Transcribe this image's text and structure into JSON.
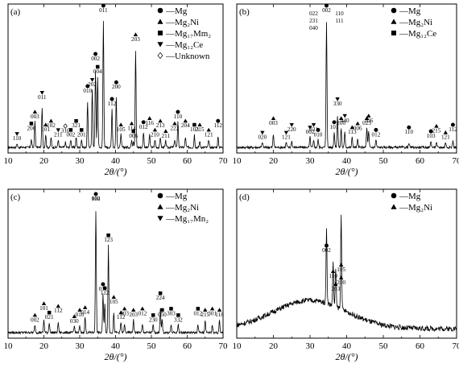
{
  "chart_data": [
    {
      "type": "line",
      "panel": "(a)",
      "xlabel": "2θ/(°)",
      "x_ticks": [
        10,
        20,
        30,
        40,
        50,
        60,
        70
      ],
      "xlim": [
        10,
        70
      ],
      "ylabel": "",
      "grid": false,
      "legend_position": "top-right",
      "legend": [
        {
          "marker": "circle",
          "label": "—Mg"
        },
        {
          "marker": "triangle-up",
          "label": "—Mg₂Ni"
        },
        {
          "marker": "square",
          "label": "—Mg₁₇Mm₂"
        },
        {
          "marker": "triangle-down",
          "label": "—Mg₁₂Ce"
        },
        {
          "marker": "diamond-open",
          "label": "—Unknown"
        }
      ],
      "peaks": [
        {
          "x": 12.5,
          "h": 0.03,
          "marker": "triangle-down",
          "label": "110"
        },
        {
          "x": 16.5,
          "h": 0.06,
          "marker": "square",
          "label": "200"
        },
        {
          "x": 17.5,
          "h": 0.2,
          "marker": "triangle-up",
          "label": "003"
        },
        {
          "x": 19.5,
          "h": 0.3,
          "marker": "triangle-down",
          "label": "011"
        },
        {
          "x": 20.5,
          "h": 0.1,
          "marker": "triangle-up",
          "label": "101"
        },
        {
          "x": 22.0,
          "h": 0.08,
          "marker": "triangle-up",
          "label": "102"
        },
        {
          "x": 24.0,
          "h": 0.06,
          "marker": "triangle-down",
          "label": "211"
        },
        {
          "x": 26.0,
          "h": 0.04,
          "marker": "diamond-open",
          "label": "310"
        },
        {
          "x": 27.5,
          "h": 0.06,
          "marker": "square",
          "label": "002"
        },
        {
          "x": 29.0,
          "h": 0.08,
          "marker": "square",
          "label": "321"
        },
        {
          "x": 30.5,
          "h": 0.06,
          "marker": "square",
          "label": "201"
        },
        {
          "x": 32.2,
          "h": 0.35,
          "marker": "circle",
          "label": "010"
        },
        {
          "x": 33.5,
          "h": 0.45,
          "marker": "triangle-down",
          "label": "202"
        },
        {
          "x": 34.4,
          "h": 0.6,
          "marker": "circle",
          "label": "002"
        },
        {
          "x": 35.0,
          "h": 0.55,
          "marker": "square",
          "label": "004"
        },
        {
          "x": 36.6,
          "h": 0.98,
          "marker": "circle",
          "label": "011"
        },
        {
          "x": 39.0,
          "h": 0.3,
          "marker": "circle",
          "label": "112"
        },
        {
          "x": 40.2,
          "h": 0.38,
          "marker": "circle",
          "label": "200"
        },
        {
          "x": 41.5,
          "h": 0.1,
          "marker": "triangle-up",
          "label": "105"
        },
        {
          "x": 44.5,
          "h": 0.06,
          "marker": "triangle-up",
          "label": "114"
        },
        {
          "x": 45.0,
          "h": 0.05,
          "marker": "square",
          "label": "006"
        },
        {
          "x": 45.6,
          "h": 0.75,
          "marker": "triangle-up",
          "label": "203"
        },
        {
          "x": 47.8,
          "h": 0.12,
          "marker": "circle",
          "label": "012"
        },
        {
          "x": 49.5,
          "h": 0.1,
          "marker": "triangle-up",
          "label": "116"
        },
        {
          "x": 51.0,
          "h": 0.06,
          "marker": "triangle-up",
          "label": "210"
        },
        {
          "x": 52.5,
          "h": 0.08,
          "marker": "triangle-up",
          "label": "213"
        },
        {
          "x": 54.0,
          "h": 0.05,
          "marker": "triangle-up",
          "label": "211"
        },
        {
          "x": 56.5,
          "h": 0.06,
          "marker": "triangle-up",
          "label": "222"
        },
        {
          "x": 57.4,
          "h": 0.2,
          "marker": "circle",
          "label": "110"
        },
        {
          "x": 59.5,
          "h": 0.08,
          "marker": "triangle-up",
          "label": "204"
        },
        {
          "x": 62.0,
          "h": 0.1,
          "marker": "square",
          "label": "103"
        },
        {
          "x": 63.5,
          "h": 0.05,
          "marker": "triangle-up",
          "label": "215"
        },
        {
          "x": 66.0,
          "h": 0.06,
          "marker": "triangle-up",
          "label": "121"
        },
        {
          "x": 68.6,
          "h": 0.08,
          "marker": "circle",
          "label": "112"
        }
      ]
    },
    {
      "type": "line",
      "panel": "(b)",
      "xlabel": "2θ/(°)",
      "x_ticks": [
        10,
        20,
        30,
        40,
        50,
        60,
        70
      ],
      "xlim": [
        10,
        70
      ],
      "ylabel": "",
      "grid": false,
      "legend_position": "top-right",
      "legend": [
        {
          "marker": "circle",
          "label": "—Mg"
        },
        {
          "marker": "triangle-up",
          "label": "—Mg₂Ni"
        },
        {
          "marker": "square",
          "label": "—Mg₁₂Ce"
        }
      ],
      "peaks": [
        {
          "x": 17.0,
          "h": 0.04,
          "marker": "triangle-down",
          "label": "020"
        },
        {
          "x": 20.0,
          "h": 0.1,
          "marker": "triangle-up",
          "label": "003"
        },
        {
          "x": 23.5,
          "h": 0.04,
          "marker": "triangle-down",
          "label": "121"
        },
        {
          "x": 25.0,
          "h": 0.05,
          "marker": "triangle-down",
          "label": "220"
        },
        {
          "x": 30.0,
          "h": 0.08,
          "marker": "triangle-down",
          "label": "002"
        },
        {
          "x": 31.0,
          "h": 0.05,
          "marker": "triangle-down",
          "label": "031"
        },
        {
          "x": 32.2,
          "h": 0.06,
          "marker": "circle",
          "label": "010"
        },
        {
          "x": 34.5,
          "h": 0.98,
          "marker": "circle",
          "label": "002"
        },
        {
          "x": 36.6,
          "h": 0.12,
          "marker": "circle",
          "label": "101"
        },
        {
          "x": 37.5,
          "h": 0.25,
          "marker": "triangle-down",
          "label": "330"
        },
        {
          "x": 38.5,
          "h": 0.15,
          "marker": "triangle-up",
          "label": "200"
        },
        {
          "x": 39.5,
          "h": 0.12,
          "marker": "triangle-down",
          "label": "440"
        },
        {
          "x": 41.5,
          "h": 0.08,
          "marker": "triangle-up",
          "label": "113"
        },
        {
          "x": 43.0,
          "h": 0.06,
          "marker": "triangle-up",
          "label": "006"
        },
        {
          "x": 45.5,
          "h": 0.15,
          "marker": "triangle-up",
          "label": "023"
        },
        {
          "x": 46.0,
          "h": 0.12,
          "marker": "triangle-up",
          "label": "106"
        },
        {
          "x": 48.0,
          "h": 0.06,
          "marker": "circle",
          "label": "012"
        },
        {
          "x": 57.0,
          "h": 0.03,
          "marker": "circle",
          "label": "110"
        },
        {
          "x": 63.0,
          "h": 0.05,
          "marker": "circle",
          "label": "103"
        },
        {
          "x": 64.5,
          "h": 0.04,
          "marker": "triangle-up",
          "label": "215"
        },
        {
          "x": 67.0,
          "h": 0.04,
          "marker": "triangle-up",
          "label": "121"
        },
        {
          "x": 69.0,
          "h": 0.05,
          "marker": "circle",
          "label": "112"
        }
      ],
      "extra_labels": [
        "022",
        "231",
        "040",
        "110",
        "111"
      ]
    },
    {
      "type": "line",
      "panel": "(c)",
      "xlabel": "2θ/(°)",
      "x_ticks": [
        10,
        20,
        30,
        40,
        50,
        60,
        70
      ],
      "xlim": [
        10,
        70
      ],
      "ylabel": "",
      "grid": false,
      "legend_position": "top-right",
      "legend": [
        {
          "marker": "circle",
          "label": "—Mg"
        },
        {
          "marker": "triangle-up",
          "label": "—Mg₂Ni"
        },
        {
          "marker": "triangle-down",
          "label": "—Mg₁₇Mn₂"
        }
      ],
      "peaks": [
        {
          "x": 17.5,
          "h": 0.06,
          "marker": "triangle-up",
          "label": "002"
        },
        {
          "x": 20.0,
          "h": 0.1,
          "marker": "triangle-up",
          "label": "101"
        },
        {
          "x": 21.5,
          "h": 0.08,
          "marker": "square",
          "label": "021"
        },
        {
          "x": 24.0,
          "h": 0.08,
          "marker": "triangle-up",
          "label": "112"
        },
        {
          "x": 28.5,
          "h": 0.05,
          "marker": "triangle-up",
          "label": "030"
        },
        {
          "x": 30.0,
          "h": 0.05,
          "marker": "triangle-up",
          "label": "010"
        },
        {
          "x": 31.5,
          "h": 0.12,
          "marker": "triangle-up",
          "label": "014"
        },
        {
          "x": 34.5,
          "h": 0.95,
          "marker": "circle",
          "label": "002"
        },
        {
          "x": 36.5,
          "h": 0.3,
          "marker": "circle",
          "label": "011"
        },
        {
          "x": 37.0,
          "h": 0.22,
          "marker": "circle",
          "label": "112"
        },
        {
          "x": 38.0,
          "h": 0.68,
          "marker": "square",
          "label": "123"
        },
        {
          "x": 39.5,
          "h": 0.15,
          "marker": "triangle-up",
          "label": "105"
        },
        {
          "x": 41.5,
          "h": 0.08,
          "marker": "triangle-up",
          "label": "112"
        },
        {
          "x": 42.5,
          "h": 0.06,
          "marker": "triangle-up",
          "label": "003"
        },
        {
          "x": 45.0,
          "h": 0.1,
          "marker": "triangle-up",
          "label": "203"
        },
        {
          "x": 47.5,
          "h": 0.06,
          "marker": "triangle-up",
          "label": "012"
        },
        {
          "x": 50.5,
          "h": 0.06,
          "marker": "square",
          "label": "230"
        },
        {
          "x": 52.5,
          "h": 0.18,
          "marker": "square",
          "label": "224"
        },
        {
          "x": 53.0,
          "h": 0.1,
          "marker": "square",
          "label": "050"
        },
        {
          "x": 55.5,
          "h": 0.06,
          "marker": "square",
          "label": "303"
        },
        {
          "x": 57.5,
          "h": 0.06,
          "marker": "square",
          "label": "332"
        },
        {
          "x": 63.0,
          "h": 0.06,
          "marker": "square",
          "label": "012"
        },
        {
          "x": 65.0,
          "h": 0.1,
          "marker": "triangle-up",
          "label": "215"
        },
        {
          "x": 67.0,
          "h": 0.06,
          "marker": "triangle-up",
          "label": "301"
        },
        {
          "x": 69.0,
          "h": 0.1,
          "marker": "triangle-up",
          "label": "118"
        }
      ],
      "extra_labels": [
        "110"
      ]
    },
    {
      "type": "line",
      "panel": "(d)",
      "xlabel": "2θ/(°)",
      "x_ticks": [
        10,
        20,
        30,
        40,
        50,
        60,
        70
      ],
      "xlim": [
        10,
        70
      ],
      "ylabel": "",
      "grid": false,
      "legend_position": "top-right",
      "legend": [
        {
          "marker": "circle",
          "label": "—Mg"
        },
        {
          "marker": "triangle-up",
          "label": "—Mg₂Ni"
        }
      ],
      "peaks": [
        {
          "x": 34.5,
          "h": 0.6,
          "marker": "circle",
          "label": "002"
        },
        {
          "x": 36.3,
          "h": 0.35,
          "marker": "triangle-up",
          "label": "110"
        },
        {
          "x": 37.0,
          "h": 0.3,
          "marker": "triangle-up",
          "label": "203"
        },
        {
          "x": 38.5,
          "h": 0.4,
          "marker": "triangle-up",
          "label": "105"
        },
        {
          "x": 38.5,
          "h": 0.35,
          "marker": "triangle-up",
          "label": "200"
        }
      ],
      "baseline": "amorphous hump 15–45°"
    }
  ]
}
